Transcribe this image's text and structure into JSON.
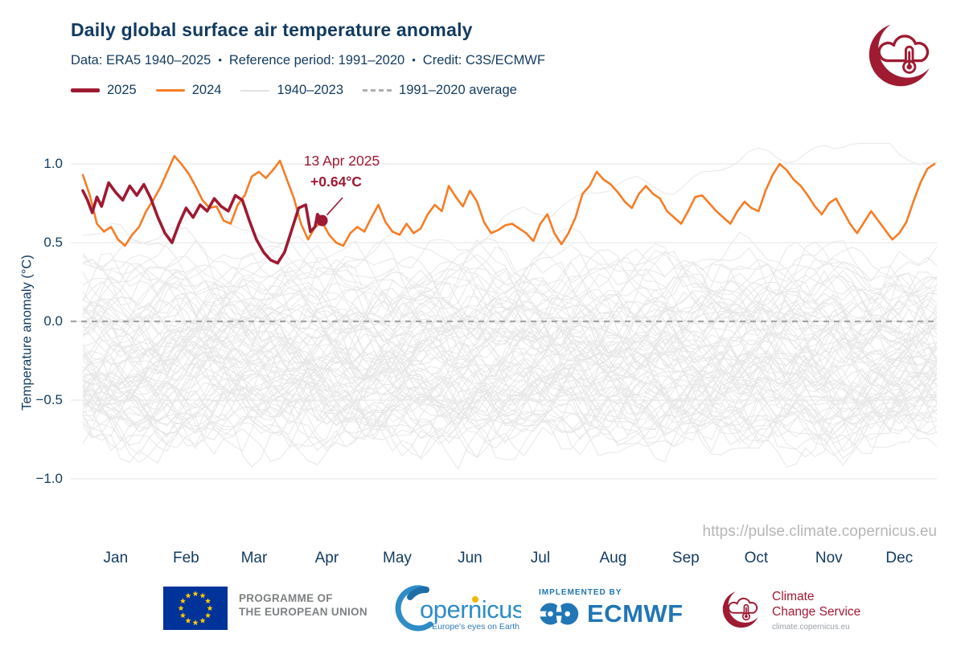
{
  "header": {
    "title": "Daily global surface air temperature anomaly",
    "subtitle_parts": [
      "Data: ERA5 1940–2025",
      "Reference period: 1991–2020",
      "Credit: C3S/ECMWF"
    ],
    "separator": "•"
  },
  "legend": {
    "items": [
      {
        "label": "2025",
        "color": "#9e1a32",
        "style": "solid-thick"
      },
      {
        "label": "2024",
        "color": "#f57d25",
        "style": "solid"
      },
      {
        "label": "1940–2023",
        "color": "#e2e2e2",
        "style": "solid-thin"
      },
      {
        "label": "1991–2020 average",
        "color": "#adadad",
        "style": "dashed"
      }
    ]
  },
  "annotation": {
    "date_label": "13 Apr 2025",
    "value_label": "+0.64°C",
    "day": 103,
    "value": 0.64,
    "color": "#9e1a32"
  },
  "watermark": "https://pulse.climate.copernicus.eu",
  "colors": {
    "navy": "#123a5f",
    "red_2025": "#9e1a32",
    "orange_2024": "#f57d25",
    "background_lines": "#e7e7e7",
    "average_dash": "#a5a5a5",
    "grid": "#ebebeb",
    "eu_blue": "#003399",
    "star_yellow": "#ffcc00",
    "ecmwf_blue": "#2176b5",
    "copernicus_blue": "#2e8cc7",
    "ccs_red": "#9e1b32",
    "watermark_gray": "#b6b6b6"
  },
  "chart_data": {
    "type": "line",
    "title": "Daily global surface air temperature anomaly",
    "xlabel": "",
    "ylabel": "Temperature anomaly (°C)",
    "months": [
      "Jan",
      "Feb",
      "Mar",
      "Apr",
      "May",
      "Jun",
      "Jul",
      "Aug",
      "Sep",
      "Oct",
      "Nov",
      "Dec"
    ],
    "month_center_days": [
      15,
      45,
      74,
      105,
      135,
      166,
      196,
      227,
      258,
      288,
      319,
      349
    ],
    "yticks": {
      "values": [
        1.0,
        0.5,
        0.0,
        -0.5,
        -1.0
      ],
      "labels": [
        "1.0",
        "0.5",
        "0.0",
        "−0.5",
        "−1.0"
      ]
    },
    "ylim": [
      -1.3,
      1.15
    ],
    "x_range_days": [
      1,
      365
    ],
    "grid": true,
    "legend_position": "top",
    "average_line": {
      "label": "1991–2020 average",
      "value": 0.0,
      "color": "#a5a5a5",
      "dash": [
        7,
        6
      ]
    },
    "series": [
      {
        "name": "2025",
        "color": "#9e1a32",
        "width": 3.6,
        "days": [
          1,
          3,
          5,
          7,
          9,
          12,
          15,
          18,
          21,
          24,
          27,
          30,
          33,
          36,
          39,
          42,
          45,
          48,
          51,
          54,
          57,
          60,
          63,
          66,
          69,
          72,
          75,
          78,
          81,
          84,
          87,
          90,
          93,
          96,
          98,
          100,
          101,
          103
        ],
        "values": [
          0.83,
          0.77,
          0.69,
          0.79,
          0.73,
          0.88,
          0.82,
          0.77,
          0.86,
          0.8,
          0.87,
          0.78,
          0.66,
          0.56,
          0.5,
          0.62,
          0.72,
          0.66,
          0.74,
          0.7,
          0.78,
          0.73,
          0.7,
          0.8,
          0.77,
          0.64,
          0.52,
          0.44,
          0.39,
          0.37,
          0.44,
          0.58,
          0.72,
          0.74,
          0.57,
          0.6,
          0.68,
          0.64
        ],
        "end_marker": {
          "day": 103,
          "value": 0.64
        }
      },
      {
        "name": "2024",
        "color": "#f57d25",
        "width": 2.6,
        "start_day": 1,
        "day_step": 3,
        "values": [
          0.93,
          0.8,
          0.62,
          0.57,
          0.6,
          0.52,
          0.48,
          0.55,
          0.6,
          0.7,
          0.77,
          0.85,
          0.95,
          1.05,
          1.0,
          0.94,
          0.86,
          0.77,
          0.72,
          0.73,
          0.64,
          0.62,
          0.74,
          0.8,
          0.92,
          0.95,
          0.91,
          0.96,
          1.02,
          0.9,
          0.78,
          0.62,
          0.52,
          0.6,
          0.63,
          0.55,
          0.5,
          0.48,
          0.56,
          0.6,
          0.57,
          0.66,
          0.74,
          0.63,
          0.57,
          0.55,
          0.62,
          0.56,
          0.59,
          0.68,
          0.74,
          0.7,
          0.86,
          0.79,
          0.73,
          0.83,
          0.76,
          0.63,
          0.56,
          0.58,
          0.61,
          0.62,
          0.59,
          0.56,
          0.51,
          0.62,
          0.68,
          0.56,
          0.49,
          0.56,
          0.66,
          0.81,
          0.86,
          0.95,
          0.9,
          0.87,
          0.82,
          0.76,
          0.72,
          0.81,
          0.86,
          0.81,
          0.78,
          0.7,
          0.66,
          0.62,
          0.7,
          0.79,
          0.8,
          0.75,
          0.7,
          0.66,
          0.62,
          0.7,
          0.76,
          0.72,
          0.7,
          0.83,
          0.93,
          1.0,
          0.96,
          0.9,
          0.86,
          0.8,
          0.73,
          0.68,
          0.75,
          0.78,
          0.7,
          0.62,
          0.56,
          0.63,
          0.7,
          0.64,
          0.58,
          0.52,
          0.56,
          0.63,
          0.76,
          0.88,
          0.97,
          1.0
        ]
      }
    ],
    "background": {
      "label": "1940–2023",
      "color": "#e7e7e7",
      "count": 84,
      "seed": 1940,
      "base_range": [
        -0.62,
        0.3
      ],
      "wiggle": 0.26,
      "clamp": [
        -1.27,
        1.13
      ],
      "hot_year": {
        "start": 0.33,
        "rise": 0.72,
        "ramp_days": [
          140,
          270
        ]
      },
      "warm_early_year": {
        "start": 0.62,
        "fall": 0.3
      }
    }
  },
  "footer": {
    "eu": {
      "line1": "PROGRAMME OF",
      "line2": "THE EUROPEAN UNION"
    },
    "copernicus": {
      "wordmark": "opernicus",
      "tagline": "Europe's eyes on Earth"
    },
    "ecmwf": {
      "implemented_by": "IMPLEMENTED BY",
      "name": "ECMWF"
    },
    "ccs": {
      "line1": "Climate",
      "line2": "Change Service",
      "url": "climate.copernicus.eu"
    }
  }
}
